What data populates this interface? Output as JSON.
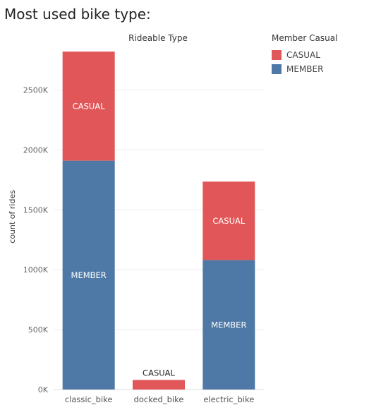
{
  "chart_data": {
    "type": "bar",
    "stacked": true,
    "title": "Most used bike type:",
    "header": "Rideable Type",
    "ylabel": "count of rides",
    "categories": [
      "classic_bike",
      "docked_bike",
      "electric_bike"
    ],
    "series": [
      {
        "name": "MEMBER",
        "color": "#4e79a7",
        "values": [
          1910000,
          0,
          1080000
        ],
        "labels": [
          "MEMBER",
          "",
          "MEMBER"
        ]
      },
      {
        "name": "CASUAL",
        "color": "#e15759",
        "values": [
          910000,
          80000,
          655000
        ],
        "labels": [
          "CASUAL",
          "CASUAL",
          "CASUAL"
        ]
      }
    ],
    "ylim": [
      0,
      2850000
    ],
    "yticks": [
      0,
      500000,
      1000000,
      1500000,
      2000000,
      2500000
    ],
    "yticklabels": [
      "0K",
      "500K",
      "1000K",
      "1500K",
      "2000K",
      "2500K"
    ],
    "grid": true,
    "legend": {
      "title": "Member Casual",
      "position": "top-right",
      "items": [
        {
          "label": "CASUAL",
          "color": "#e15759"
        },
        {
          "label": "MEMBER",
          "color": "#4e79a7"
        }
      ]
    }
  }
}
